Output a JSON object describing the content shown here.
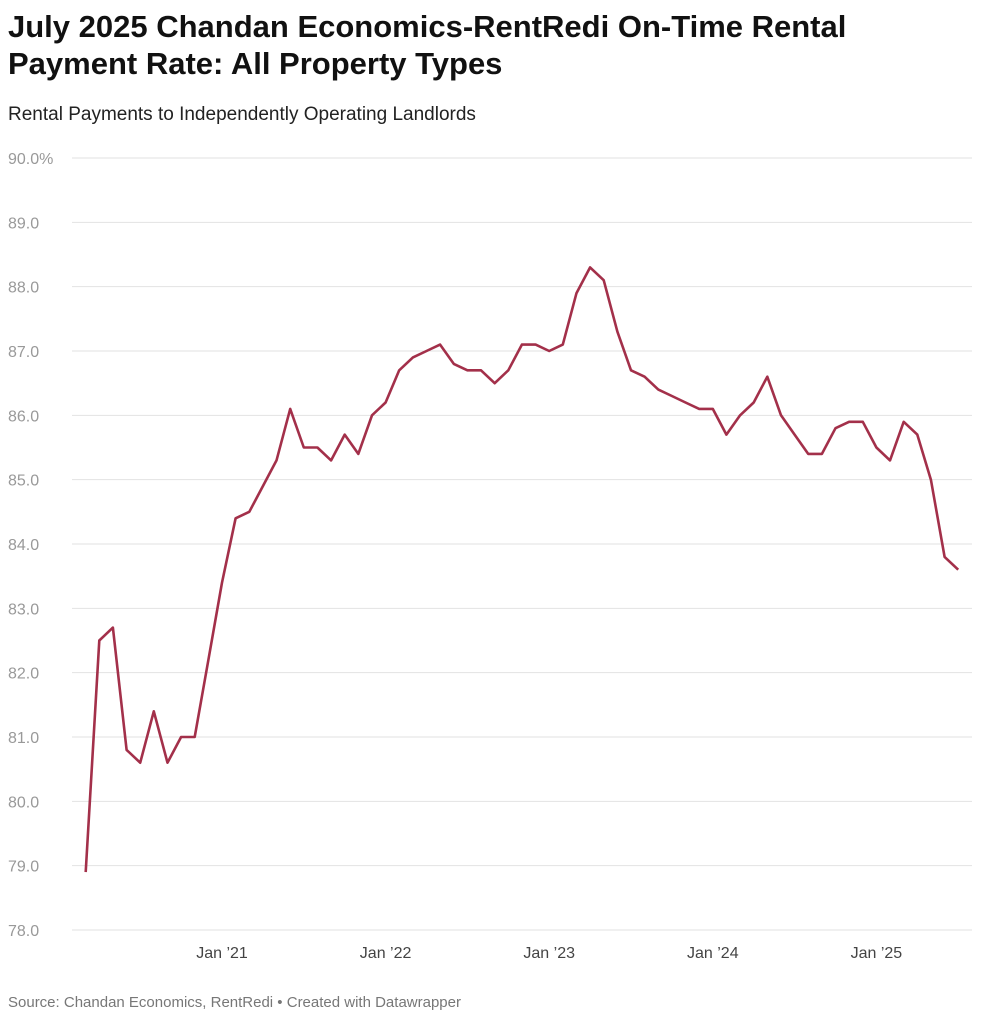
{
  "title": "July 2025 Chandan Economics-RentRedi On-Time Rental Payment Rate: All Property Types",
  "subtitle": "Rental Payments to Independently Operating Landlords",
  "source": "Source: Chandan Economics, RentRedi • Created with Datawrapper",
  "chart_data": {
    "type": "line",
    "title": "July 2025 Chandan Economics-RentRedi On-Time Rental Payment Rate: All Property Types",
    "subtitle": "Rental Payments to Independently Operating Landlords",
    "xlabel": "",
    "ylabel": "",
    "ylim": [
      78,
      90
    ],
    "grid": true,
    "line_color": "#a3304a",
    "y_ticks": [
      "90.0%",
      "89.0",
      "88.0",
      "87.0",
      "86.0",
      "85.0",
      "84.0",
      "83.0",
      "82.0",
      "81.0",
      "80.0",
      "79.0",
      "78.0"
    ],
    "x_ticks": [
      {
        "date": "2021-01",
        "label": "Jan ’21"
      },
      {
        "date": "2022-01",
        "label": "Jan ’22"
      },
      {
        "date": "2023-01",
        "label": "Jan ’23"
      },
      {
        "date": "2024-01",
        "label": "Jan ’24"
      },
      {
        "date": "2025-01",
        "label": "Jan ’25"
      }
    ],
    "x": [
      "2020-03",
      "2020-04",
      "2020-05",
      "2020-06",
      "2020-07",
      "2020-08",
      "2020-09",
      "2020-10",
      "2020-11",
      "2020-12",
      "2021-01",
      "2021-02",
      "2021-03",
      "2021-04",
      "2021-05",
      "2021-06",
      "2021-07",
      "2021-08",
      "2021-09",
      "2021-10",
      "2021-11",
      "2021-12",
      "2022-01",
      "2022-02",
      "2022-03",
      "2022-04",
      "2022-05",
      "2022-06",
      "2022-07",
      "2022-08",
      "2022-09",
      "2022-10",
      "2022-11",
      "2022-12",
      "2023-01",
      "2023-02",
      "2023-03",
      "2023-04",
      "2023-05",
      "2023-06",
      "2023-07",
      "2023-08",
      "2023-09",
      "2023-10",
      "2023-11",
      "2023-12",
      "2024-01",
      "2024-02",
      "2024-03",
      "2024-04",
      "2024-05",
      "2024-06",
      "2024-07",
      "2024-08",
      "2024-09",
      "2024-10",
      "2024-11",
      "2024-12",
      "2025-01",
      "2025-02",
      "2025-03",
      "2025-04",
      "2025-05",
      "2025-06",
      "2025-07"
    ],
    "series": [
      {
        "values": [
          78.9,
          82.5,
          82.7,
          80.8,
          80.6,
          81.4,
          80.6,
          81.0,
          81.0,
          82.2,
          83.4,
          84.4,
          84.5,
          84.9,
          85.3,
          86.1,
          85.5,
          85.5,
          85.3,
          85.7,
          85.4,
          86.0,
          86.2,
          86.7,
          86.9,
          87.0,
          87.1,
          86.8,
          86.7,
          86.7,
          86.5,
          86.7,
          87.1,
          87.1,
          87.0,
          87.1,
          87.9,
          88.3,
          88.1,
          87.3,
          86.7,
          86.6,
          86.4,
          86.3,
          86.2,
          86.1,
          86.1,
          85.7,
          86.0,
          86.2,
          86.6,
          86.0,
          85.7,
          85.4,
          85.4,
          85.8,
          85.9,
          85.9,
          85.5,
          85.3,
          85.9,
          85.7,
          85.0,
          83.8,
          83.6
        ]
      }
    ]
  }
}
